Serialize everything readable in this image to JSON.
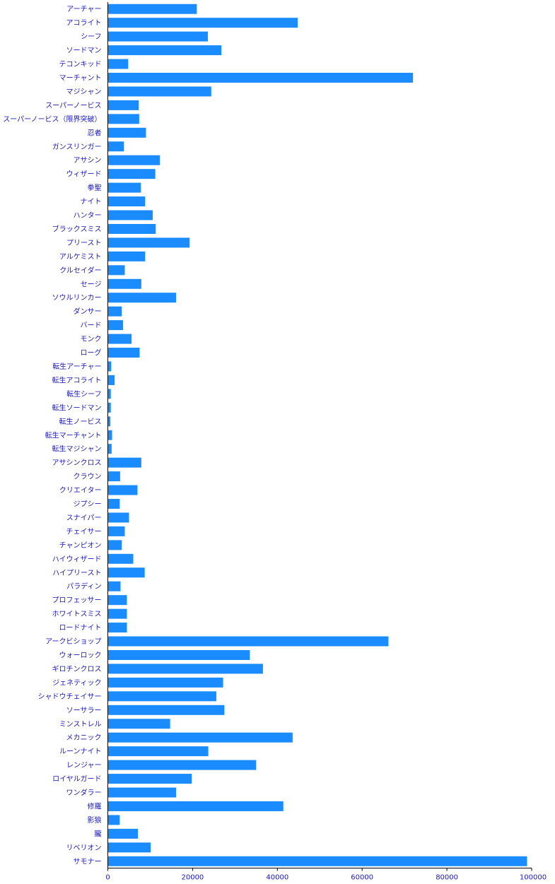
{
  "chart_data": {
    "type": "bar",
    "orientation": "horizontal",
    "categories": [
      "アーチャー",
      "アコライト",
      "シーフ",
      "ソードマン",
      "テコンキッド",
      "マーチャント",
      "マジシャン",
      "スーパーノービス",
      "スーパーノービス（限界突破）",
      "忍者",
      "ガンスリンガー",
      "アサシン",
      "ウィザード",
      "拳聖",
      "ナイト",
      "ハンター",
      "ブラックスミス",
      "プリースト",
      "アルケミスト",
      "クルセイダー",
      "セージ",
      "ソウルリンカー",
      "ダンサー",
      "バード",
      "モンク",
      "ローグ",
      "転生アーチャー",
      "転生アコライト",
      "転生シーフ",
      "転生ソードマン",
      "転生ノービス",
      "転生マーチャント",
      "転生マジシャン",
      "アサシンクロス",
      "クラウン",
      "クリエイター",
      "ジプシー",
      "スナイパー",
      "チェイサー",
      "チャンピオン",
      "ハイウィザード",
      "ハイプリースト",
      "パラディン",
      "プロフェッサー",
      "ホワイトスミス",
      "ロードナイト",
      "アークビショップ",
      "ウォーロック",
      "ギロチンクロス",
      "ジェネティック",
      "シャドウチェイサー",
      "ソーサラー",
      "ミンストレル",
      "メカニック",
      "ルーンナイト",
      "レンジャー",
      "ロイヤルガード",
      "ワンダラー",
      "修羅",
      "影狼",
      "朧",
      "リベリオン",
      "サモナー"
    ],
    "values": [
      21000,
      44800,
      23600,
      26800,
      4800,
      72000,
      24400,
      7300,
      7400,
      9000,
      3800,
      12300,
      11200,
      7800,
      8800,
      10600,
      11300,
      19300,
      8800,
      4000,
      7900,
      16100,
      3300,
      3600,
      5600,
      7500,
      800,
      1600,
      700,
      700,
      600,
      1000,
      900,
      7900,
      2900,
      7000,
      2800,
      5000,
      4000,
      3300,
      6000,
      8700,
      3000,
      4500,
      4500,
      4500,
      66200,
      33500,
      36600,
      27200,
      25600,
      27500,
      14700,
      43600,
      23700,
      35000,
      19800,
      16100,
      41400,
      2800,
      7100,
      10100,
      98900
    ],
    "xlim": [
      0,
      100000
    ],
    "xticks": [
      "0",
      "20000",
      "40000",
      "60000",
      "80000",
      "100000"
    ],
    "tick_values": [
      0,
      20000,
      40000,
      60000,
      80000,
      100000
    ],
    "grid": false,
    "bar_color": "#1a8cff",
    "label_color": "#1a1ab8",
    "axis_color": "#000000"
  }
}
